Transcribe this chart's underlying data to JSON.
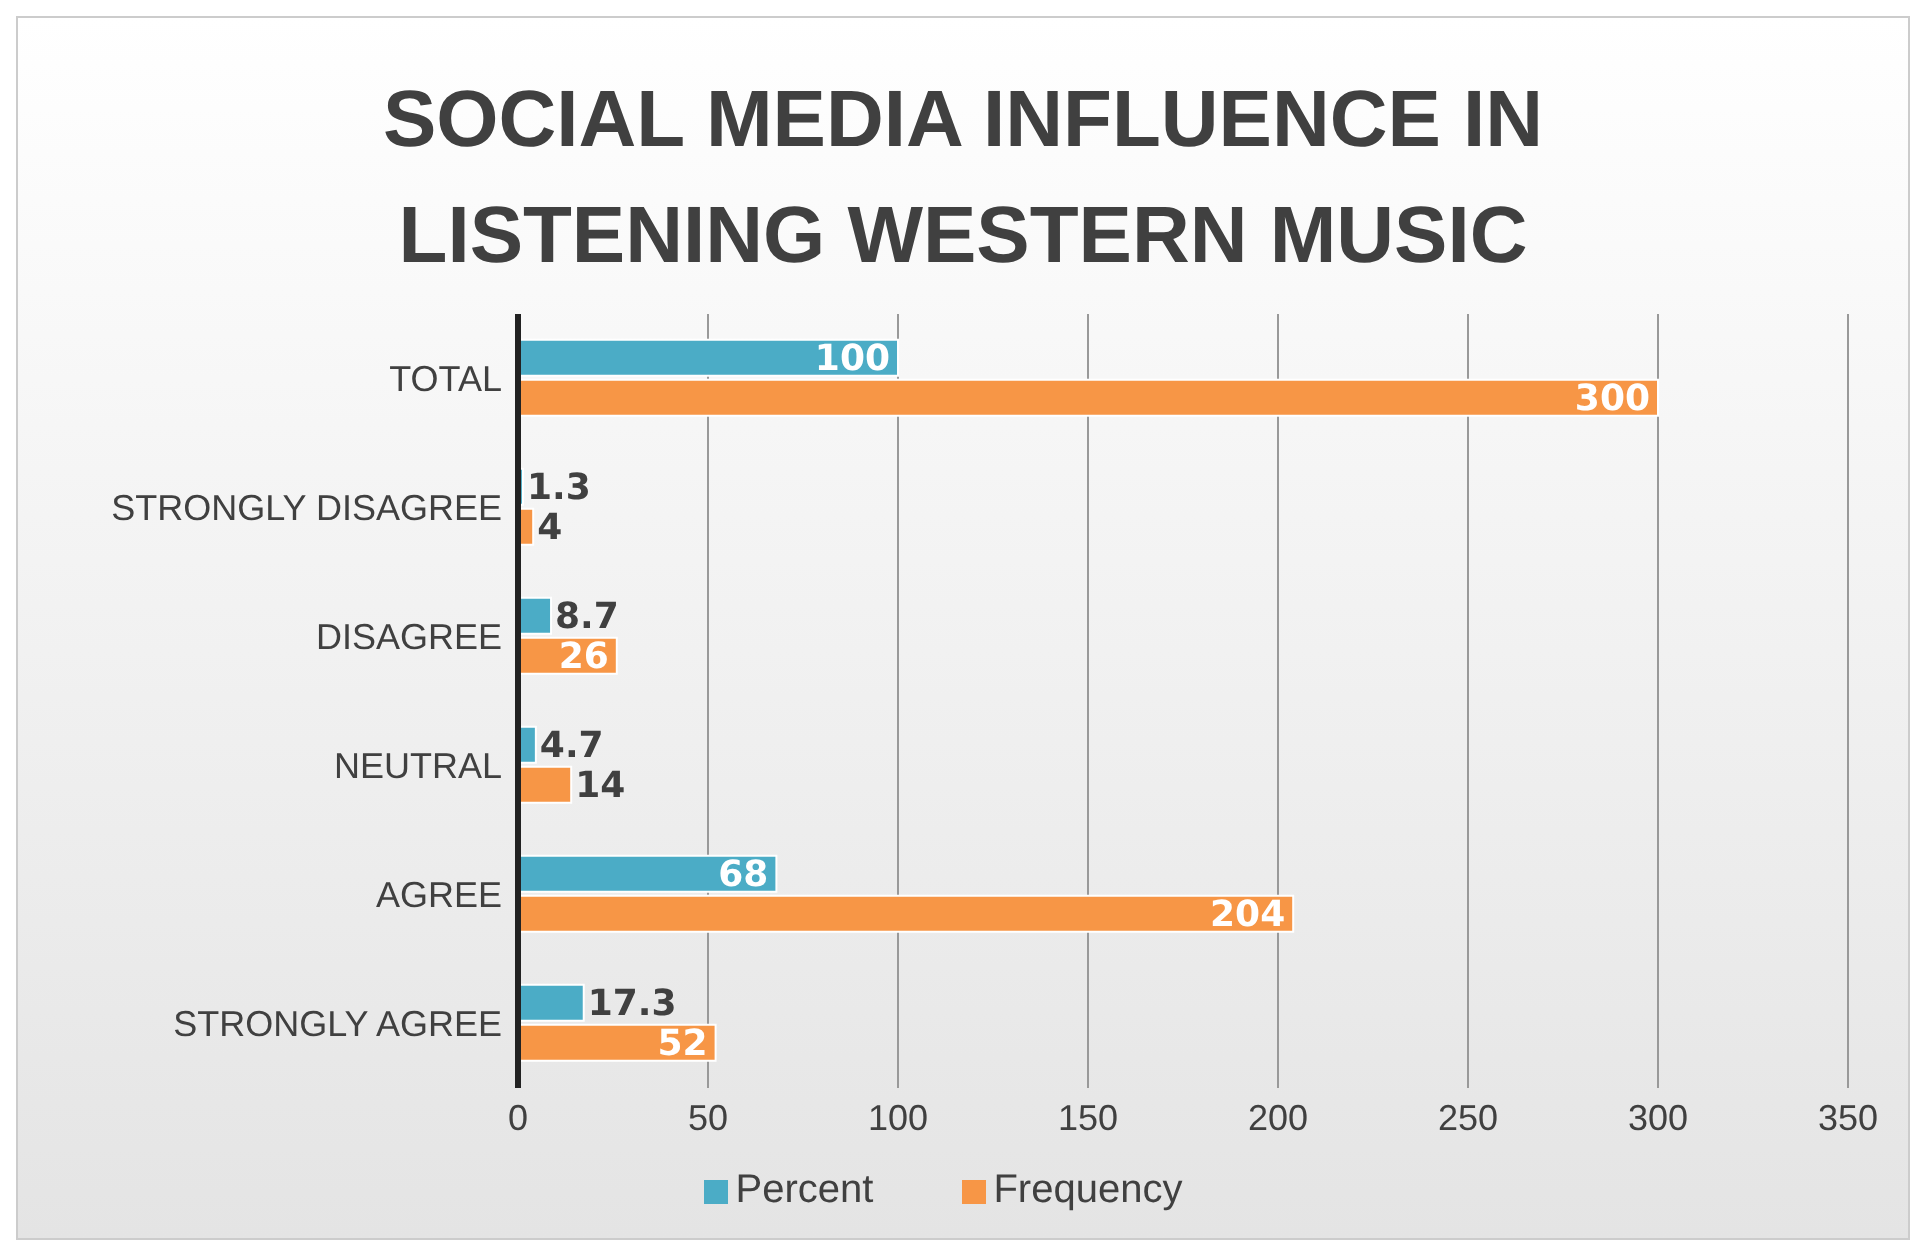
{
  "chart_data": {
    "type": "bar",
    "orientation": "horizontal",
    "title": "SOCIAL MEDIA INFLUENCE IN LISTENING WESTERN MUSIC",
    "categories": [
      "TOTAL",
      "STRONGLY DISAGREE",
      "DISAGREE",
      "NEUTRAL",
      "AGREE",
      "STRONGLY AGREE"
    ],
    "series": [
      {
        "name": "Percent",
        "color": "#4bacc6",
        "values": [
          100,
          1.3,
          8.7,
          4.7,
          68,
          17.3
        ]
      },
      {
        "name": "Frequency",
        "color": "#f79646",
        "values": [
          300,
          4,
          26,
          14,
          204,
          52
        ]
      }
    ],
    "xlim": [
      0,
      350
    ],
    "xticks": [
      0,
      50,
      100,
      150,
      200,
      250,
      300,
      350
    ],
    "grid": "x",
    "legend": "bottom",
    "data_labels": true
  }
}
